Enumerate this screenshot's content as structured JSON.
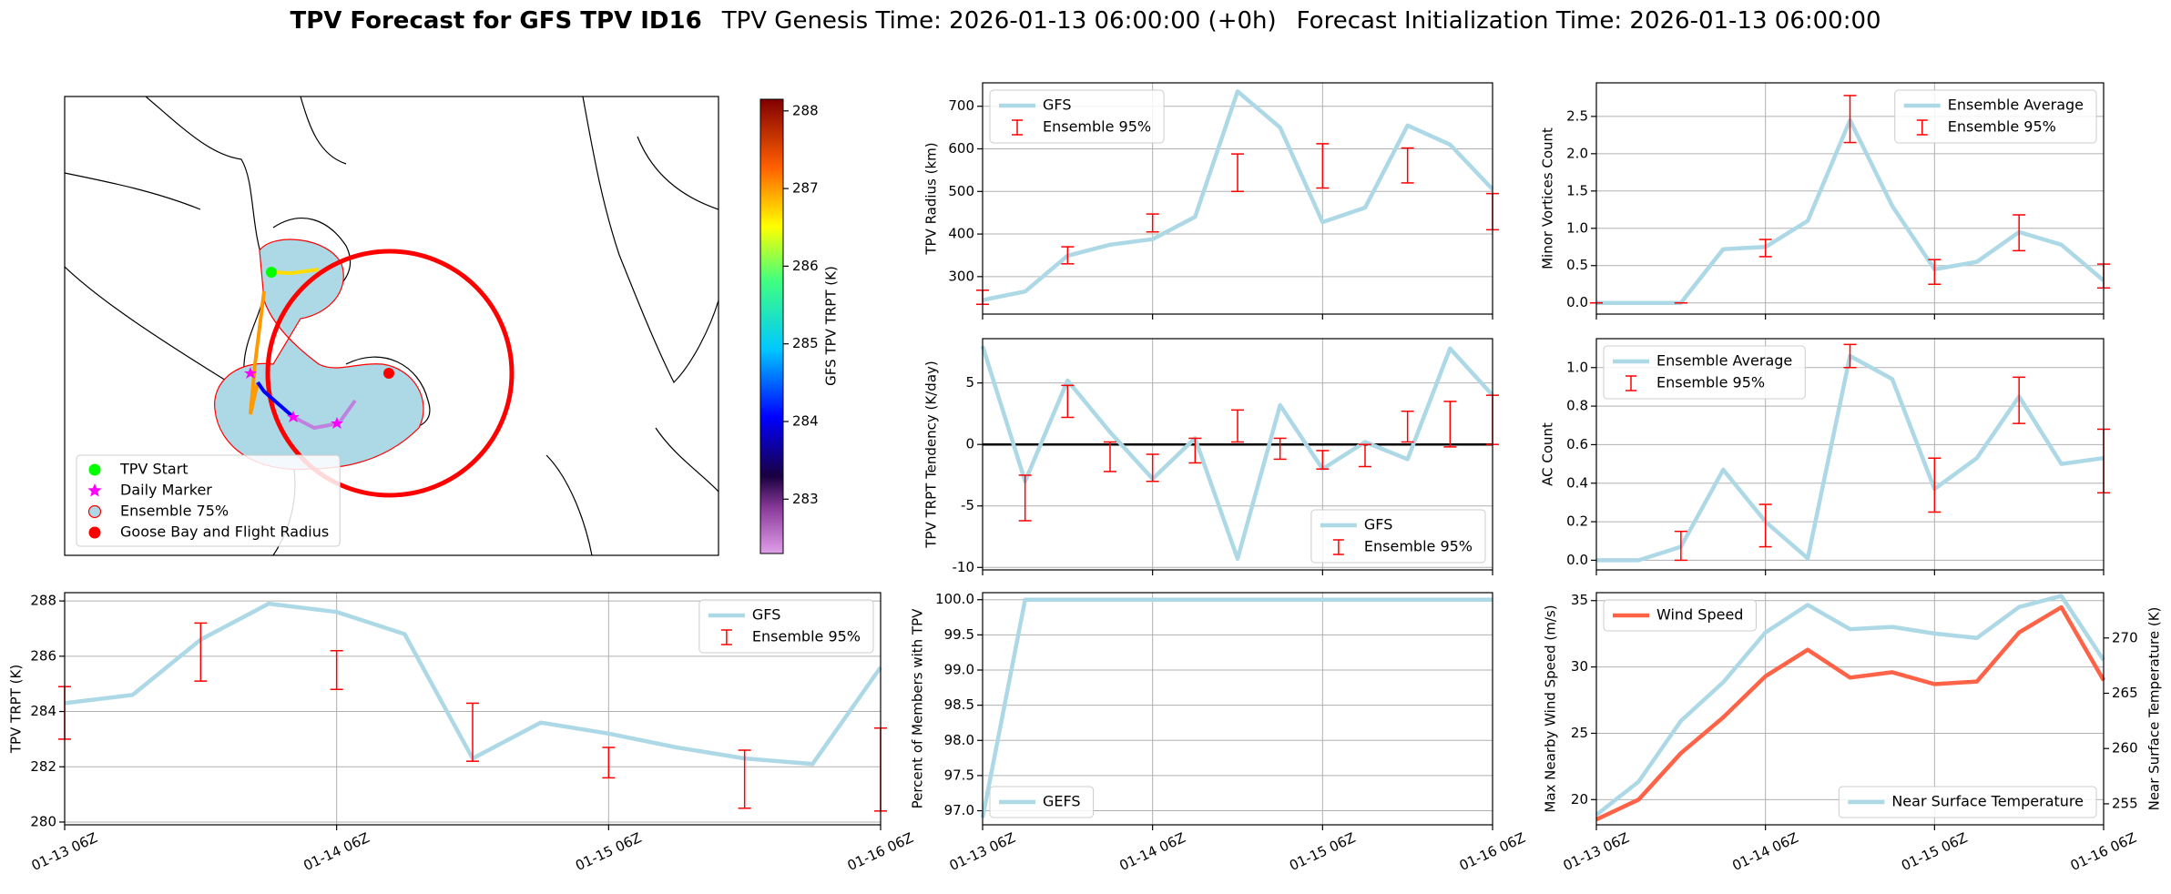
{
  "figure": {
    "title": "TPV Forecast for GFS TPV ID16",
    "genesis": "TPV Genesis Time: 2026-01-13 06:00:00 (+0h)",
    "init": "Forecast Initialization Time: 2026-01-13 06:00:00"
  },
  "chart_data": [
    {
      "type": "map",
      "legend": "lower left",
      "legend_entries": [
        {
          "name": "TPV Start",
          "color": "#00ff00",
          "marker": "circle"
        },
        {
          "name": "Daily Marker",
          "color": "#ff00ff",
          "marker": "star"
        },
        {
          "name": "Ensemble 75%",
          "color": "#add8e6",
          "edge": "#ff0000",
          "marker": "circle"
        },
        {
          "name": "Goose Bay and Flight Radius",
          "color": "#ff0000",
          "marker": "circle"
        }
      ],
      "colorbar": {
        "label": "GFS TPV TRPT (K)",
        "lim": [
          282.3,
          288.15
        ],
        "ticks": [
          283,
          284,
          285,
          286,
          287,
          288
        ]
      }
    },
    {
      "type": "line",
      "ylabel": "TPV TRPT (K)",
      "categories": [
        "01-13 06Z",
        null,
        null,
        null,
        "01-14 06Z",
        null,
        null,
        null,
        "01-15 06Z",
        null,
        null,
        null,
        "01-16 06Z"
      ],
      "ylim": [
        279.9,
        288.3
      ],
      "yticks": [
        280,
        282,
        284,
        286,
        288
      ],
      "grid": true,
      "legend": "upper right",
      "series": [
        {
          "name": "GFS",
          "color": "#add8e6",
          "values": [
            284.3,
            284.6,
            286.6,
            287.9,
            287.6,
            286.8,
            282.3,
            283.6,
            283.2,
            282.7,
            282.3,
            282.1,
            285.6
          ]
        },
        {
          "name": "Ensemble 95%",
          "color": "#ff0000",
          "type": "errorbar",
          "low": [
            283.0,
            null,
            285.1,
            null,
            284.8,
            null,
            282.2,
            null,
            281.6,
            null,
            280.5,
            null,
            280.4
          ],
          "high": [
            284.9,
            null,
            287.2,
            null,
            286.2,
            null,
            284.3,
            null,
            282.7,
            null,
            282.6,
            null,
            283.4
          ]
        }
      ]
    },
    {
      "type": "line",
      "ylabel": "TPV Radius (km)",
      "ylim": [
        212,
        755
      ],
      "yticks": [
        300,
        400,
        500,
        600,
        700
      ],
      "grid": true,
      "legend": "upper left",
      "series": [
        {
          "name": "GFS",
          "color": "#add8e6",
          "values": [
            245,
            265,
            349,
            375,
            388,
            440,
            735,
            650,
            428,
            462,
            655,
            610,
            505
          ]
        },
        {
          "name": "Ensemble 95%",
          "color": "#ff0000",
          "type": "errorbar",
          "low": [
            235,
            null,
            330,
            null,
            405,
            null,
            500,
            null,
            508,
            null,
            520,
            null,
            410
          ],
          "high": [
            268,
            null,
            370,
            null,
            447,
            null,
            588,
            null,
            612,
            null,
            602,
            null,
            495
          ]
        }
      ]
    },
    {
      "type": "line",
      "ylabel": "TPV TRPT Tendency (K/day)",
      "ylim": [
        -10.2,
        8.6
      ],
      "yticks": [
        -10,
        -5,
        0,
        5
      ],
      "grid": true,
      "legend": "lower right",
      "hline": 0,
      "series": [
        {
          "name": "GFS",
          "color": "#add8e6",
          "values": [
            8,
            -3,
            5.2,
            1,
            -2.8,
            0.5,
            -9.3,
            3.2,
            -2,
            0.2,
            -1.2,
            7.8,
            4
          ]
        },
        {
          "name": "Ensemble 95%",
          "color": "#ff0000",
          "type": "errorbar",
          "low": [
            null,
            -6.2,
            2.2,
            -2.2,
            -3,
            -1.5,
            0.2,
            -1.2,
            -2,
            -1.8,
            0.2,
            -0.2,
            0
          ],
          "high": [
            null,
            -2.5,
            4.8,
            0.2,
            -0.8,
            0.5,
            2.8,
            0.5,
            -0.5,
            0,
            2.7,
            3.5,
            4
          ]
        }
      ]
    },
    {
      "type": "line",
      "ylabel": "Percent of Members with TPV",
      "categories": [
        "01-13 06Z",
        null,
        null,
        null,
        "01-14 06Z",
        null,
        null,
        null,
        "01-15 06Z",
        null,
        null,
        null,
        "01-16 06Z"
      ],
      "ylim": [
        96.8,
        100.1
      ],
      "yticks": [
        {
          "value": 97,
          "label": "97.0"
        },
        97.5,
        {
          "value": 98,
          "label": "98.0"
        },
        98.5,
        {
          "value": 99,
          "label": "99.0"
        },
        99.5,
        {
          "value": 100,
          "label": "100.0"
        }
      ],
      "grid": true,
      "legend": "lower left",
      "series": [
        {
          "name": "GEFS",
          "color": "#add8e6",
          "values": [
            96.9,
            100,
            100,
            100,
            100,
            100,
            100,
            100,
            100,
            100,
            100,
            100,
            100
          ]
        }
      ]
    },
    {
      "type": "line",
      "ylabel": "Minor Vortices Count",
      "ylim": [
        -0.15,
        2.95
      ],
      "yticks": [
        {
          "value": 0,
          "label": "0.0"
        },
        0.5,
        {
          "value": 1,
          "label": "1.0"
        },
        1.5,
        {
          "value": 2,
          "label": "2.0"
        },
        2.5
      ],
      "grid": true,
      "legend": "upper right",
      "series": [
        {
          "name": "Ensemble Average",
          "color": "#add8e6",
          "values": [
            0,
            0,
            0,
            0.72,
            0.75,
            1.1,
            2.45,
            1.3,
            0.45,
            0.55,
            0.95,
            0.78,
            0.3
          ]
        },
        {
          "name": "Ensemble 95%",
          "color": "#ff0000",
          "type": "errorbar",
          "low": [
            0,
            null,
            0,
            null,
            0.62,
            null,
            2.15,
            null,
            0.25,
            null,
            0.7,
            null,
            0.2
          ],
          "high": [
            0,
            null,
            0,
            null,
            0.85,
            null,
            2.78,
            null,
            0.58,
            null,
            1.18,
            null,
            0.52
          ]
        }
      ]
    },
    {
      "type": "line",
      "ylabel": "AC Count",
      "ylim": [
        -0.05,
        1.15
      ],
      "yticks": [
        {
          "value": 0,
          "label": "0.0"
        },
        0.2,
        0.4,
        0.6,
        0.8,
        {
          "value": 1,
          "label": "1.0"
        }
      ],
      "grid": true,
      "legend": "upper left",
      "series": [
        {
          "name": "Ensemble Average",
          "color": "#add8e6",
          "values": [
            0,
            0,
            0.07,
            0.47,
            0.2,
            0.01,
            1.06,
            0.94,
            0.37,
            0.53,
            0.85,
            0.5,
            0.53
          ]
        },
        {
          "name": "Ensemble 95%",
          "color": "#ff0000",
          "type": "errorbar",
          "low": [
            null,
            null,
            0,
            null,
            0.07,
            null,
            1.0,
            null,
            0.25,
            null,
            0.71,
            null,
            0.35
          ],
          "high": [
            null,
            null,
            0.15,
            null,
            0.29,
            null,
            1.12,
            null,
            0.53,
            null,
            0.95,
            null,
            0.68
          ]
        }
      ]
    },
    {
      "type": "line",
      "ylabel": "Max Nearby Wind Speed (m/s)",
      "y2label": "Near Surface Temperature (K)",
      "categories": [
        "01-13 06Z",
        null,
        null,
        null,
        "01-14 06Z",
        null,
        null,
        null,
        "01-15 06Z",
        null,
        null,
        null,
        "01-16 06Z"
      ],
      "ylim": [
        18.1,
        35.6
      ],
      "yticks": [
        20,
        25,
        30,
        35
      ],
      "ylabel_color": "#ff6347",
      "y2lim": [
        253.1,
        274.1
      ],
      "y2ticks": [
        255,
        260,
        265,
        270
      ],
      "y2label_color": "#4169e1",
      "grid": true,
      "legend": "upper left",
      "y2legend": "lower right",
      "series": [
        {
          "name": "Wind Speed",
          "color": "#ff6347",
          "values": [
            18.5,
            20,
            23.5,
            26.2,
            29.3,
            31.3,
            29.2,
            29.6,
            28.7,
            28.9,
            32.6,
            34.5,
            29
          ]
        },
        {
          "name": "Near Surface Temperature",
          "color": "#add8e6",
          "axis": "y2",
          "values": [
            254,
            257,
            262.5,
            266,
            270.5,
            273,
            270.8,
            271,
            270.4,
            270,
            272.8,
            273.8,
            268
          ]
        }
      ]
    }
  ]
}
